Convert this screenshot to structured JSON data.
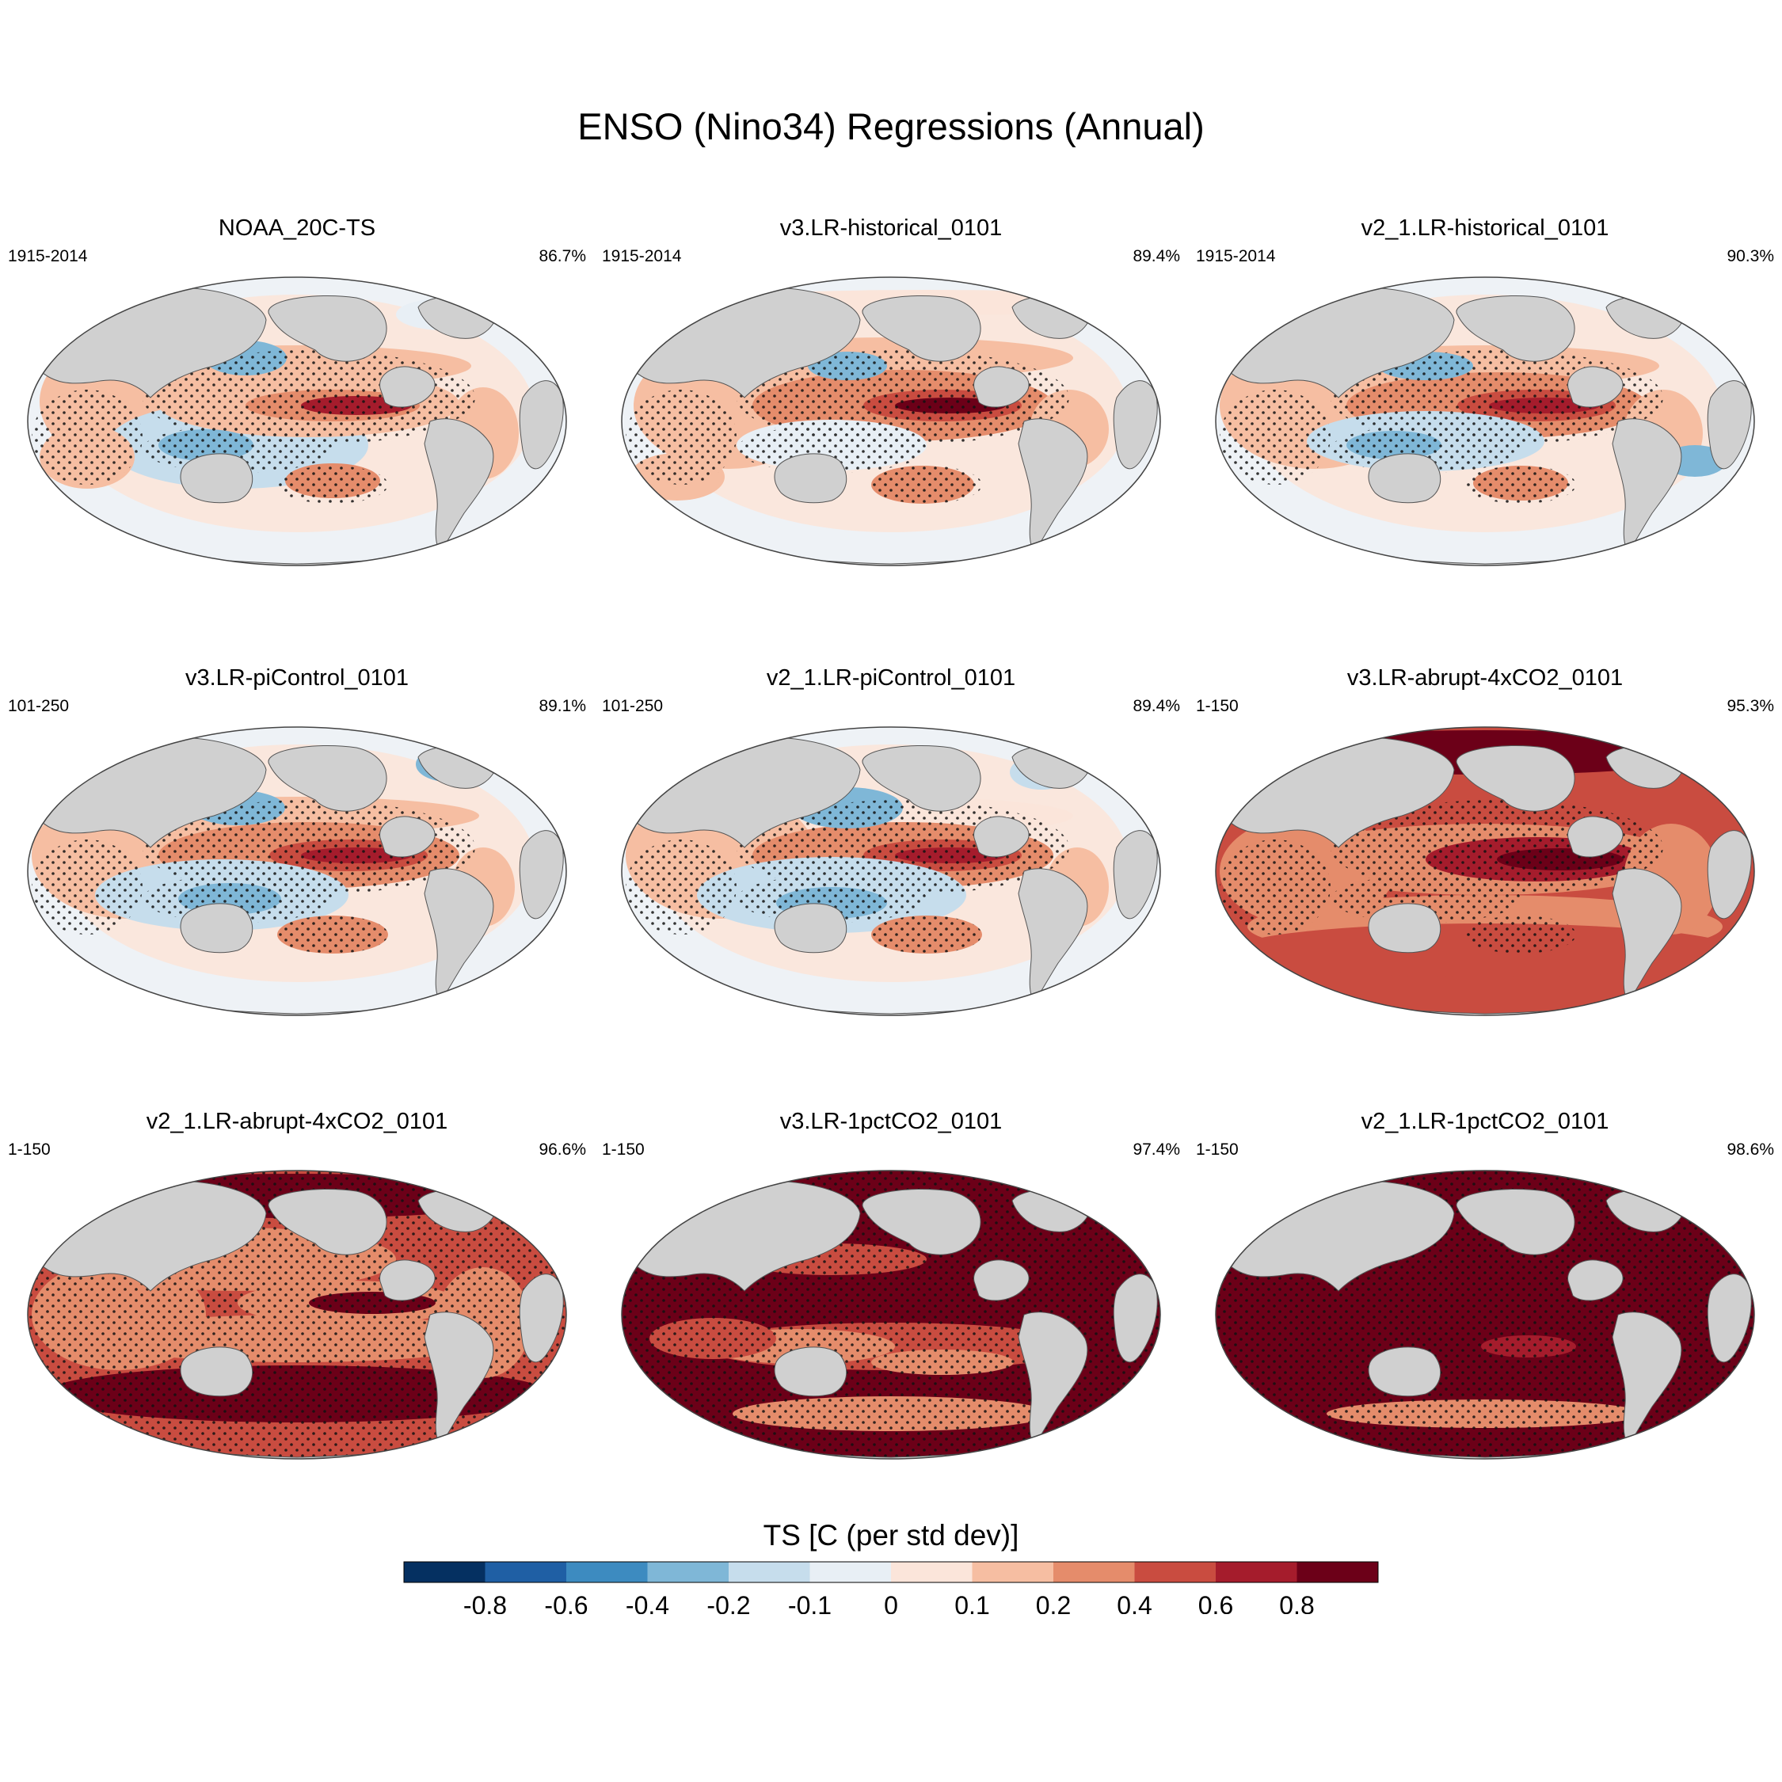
{
  "title": "ENSO (Nino34) Regressions (Annual)",
  "panels": [
    {
      "title": "NOAA_20C-TS",
      "period": "1915-2014",
      "pct": "86.7%",
      "pattern": "obs"
    },
    {
      "title": "v3.LR-historical_0101",
      "period": "1915-2014",
      "pct": "89.4%",
      "pattern": "hist"
    },
    {
      "title": "v2_1.LR-historical_0101",
      "period": "1915-2014",
      "pct": "90.3%",
      "pattern": "hist2"
    },
    {
      "title": "v3.LR-piControl_0101",
      "period": "101-250",
      "pct": "89.1%",
      "pattern": "pic"
    },
    {
      "title": "v2_1.LR-piControl_0101",
      "period": "101-250",
      "pct": "89.4%",
      "pattern": "pic2"
    },
    {
      "title": "v3.LR-abrupt-4xCO2_0101",
      "period": "1-150",
      "pct": "95.3%",
      "pattern": "abrupt3"
    },
    {
      "title": "v2_1.LR-abrupt-4xCO2_0101",
      "period": "1-150",
      "pct": "96.6%",
      "pattern": "abrupt2"
    },
    {
      "title": "v3.LR-1pctCO2_0101",
      "period": "1-150",
      "pct": "97.4%",
      "pattern": "pct3"
    },
    {
      "title": "v2_1.LR-1pctCO2_0101",
      "period": "1-150",
      "pct": "98.6%",
      "pattern": "pct2"
    }
  ],
  "colorbar": {
    "label": "TS [C (per std dev)]",
    "ticks": [
      "-0.8",
      "-0.6",
      "-0.4",
      "-0.2",
      "-0.1",
      "0",
      "0.1",
      "0.2",
      "0.4",
      "0.6",
      "0.8"
    ],
    "colors": [
      "#053061",
      "#1f5fa4",
      "#3d8bc0",
      "#7fb7d7",
      "#c6ddec",
      "#e8eff5",
      "#fbe5da",
      "#f6bea2",
      "#e58c6b",
      "#c94c40",
      "#a51c2c",
      "#6c0018"
    ],
    "land_color": "#d0d0d0",
    "ocean_neutral": "#eef2f6"
  }
}
